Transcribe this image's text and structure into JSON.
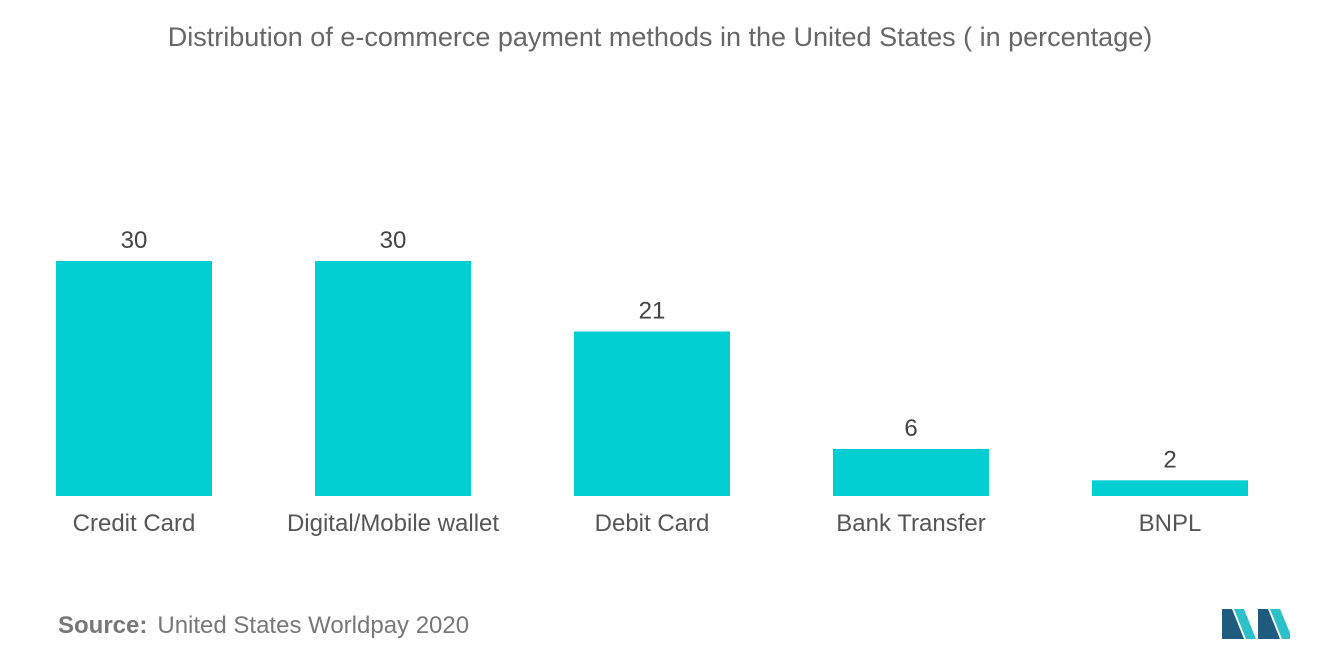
{
  "title": "Distribution of e-commerce payment methods in the United States ( in percentage)",
  "source": {
    "label": "Source:",
    "text": "United States Worldpay 2020"
  },
  "logo": {
    "icon": "mordor-intelligence-logo-icon"
  },
  "colors": {
    "bar": "#00CED1",
    "logo_dark": "#1f5b7e",
    "logo_light": "#2cc1c8"
  },
  "chart_data": {
    "type": "bar",
    "categories": [
      "Credit Card",
      "Digital/Mobile wallet",
      "Debit Card",
      "Bank Transfer",
      "BNPL"
    ],
    "values": [
      30,
      30,
      21,
      6,
      2
    ],
    "title": "Distribution of e-commerce payment methods in the United States ( in percentage)",
    "xlabel": "",
    "ylabel": "",
    "ylim": [
      0,
      30
    ],
    "grid": false,
    "legend": "none",
    "data_labels": true
  }
}
